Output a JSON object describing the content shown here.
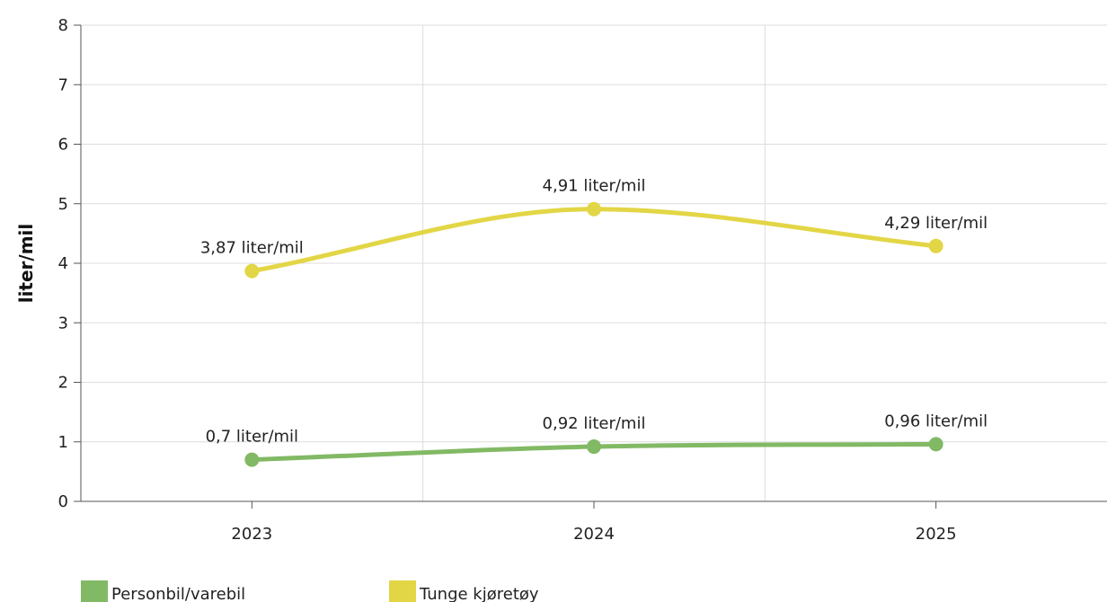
{
  "chart_data": {
    "type": "line",
    "title": "",
    "xlabel": "",
    "ylabel": "liter/mil",
    "x": [
      "2023",
      "2024",
      "2025"
    ],
    "ylim": [
      0,
      8
    ],
    "yticks": [
      "0",
      "1",
      "2",
      "3",
      "4",
      "5",
      "6",
      "7",
      "8"
    ],
    "grid": true,
    "curve": "smooth",
    "legend_position": "bottom-left",
    "series": [
      {
        "name": "Personbil/varebil",
        "color": "#82b965",
        "values": [
          0.7,
          0.92,
          0.96
        ],
        "labels": [
          "0,7 liter/mil",
          "0,92 liter/mil",
          "0,96 liter/mil"
        ]
      },
      {
        "name": "Tunge kjøretøy",
        "color": "#e3d646",
        "values": [
          3.87,
          4.91,
          4.29
        ],
        "labels": [
          "3,87 liter/mil",
          "4,91 liter/mil",
          "4,29 liter/mil"
        ]
      }
    ]
  }
}
